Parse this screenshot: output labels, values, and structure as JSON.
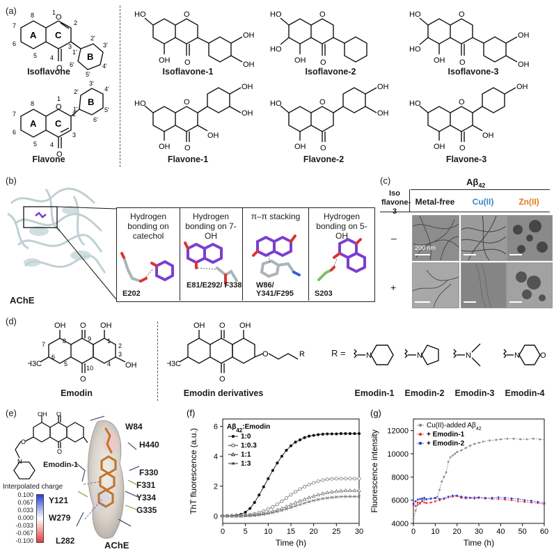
{
  "panel_a": {
    "label": "(a)",
    "scaffolds": [
      {
        "name": "Isoflavone",
        "ring_a": "A",
        "ring_b": "B",
        "ring_c": "C",
        "atoms": [
          "1",
          "2",
          "3",
          "4",
          "5",
          "6",
          "7",
          "8",
          "1'",
          "2'",
          "3'",
          "4'",
          "5'",
          "6'"
        ]
      },
      {
        "name": "Flavone",
        "ring_a": "A",
        "ring_b": "B",
        "ring_c": "C",
        "atoms": [
          "1",
          "2",
          "3",
          "4",
          "5",
          "6",
          "7",
          "8",
          "1'",
          "2'",
          "3'",
          "4'",
          "5'",
          "6'"
        ]
      }
    ],
    "compounds": [
      "Isoflavone-1",
      "Isoflavone-2",
      "Isoflavone-3",
      "Flavone-1",
      "Flavone-2",
      "Flavone-3"
    ],
    "atom_labels": {
      "O": "O",
      "HO": "HO",
      "OH": "OH"
    }
  },
  "panel_b": {
    "label": "(b)",
    "protein": "AChE",
    "interactions": [
      {
        "title": "Hydrogen bonding on catechol",
        "residues": "E202"
      },
      {
        "title": "Hydrogen bonding on 7-OH",
        "residues": "E81/E292/ F338"
      },
      {
        "title": "π–π stacking",
        "residues": "W86/ Y341/F295"
      },
      {
        "title": "Hydrogen bonding on 5-OH",
        "residues": "S203"
      }
    ]
  },
  "panel_c": {
    "label": "(c)",
    "header_main": "Aβ42",
    "row_header": "Iso flavone-3",
    "columns": [
      {
        "label": "Metal-free",
        "color": "#1a1a1a"
      },
      {
        "label": "Cu(II)",
        "color": "#3a86c8"
      },
      {
        "label": "Zn(II)",
        "color": "#e07a1f"
      }
    ],
    "rows": [
      "–",
      "+"
    ],
    "scale_label": "200 nm"
  },
  "panel_d": {
    "label": "(d)",
    "emodin": "Emodin",
    "derivatives": "Emodin derivatives",
    "r_label": "R =",
    "emodin_atoms": [
      "OH",
      "O",
      "OH",
      "8",
      "9",
      "1",
      "7",
      "2",
      "3",
      "OH",
      "6",
      "5",
      "10",
      "4",
      "H3C",
      "O"
    ],
    "r_groups": [
      "Emodin-1",
      "Emodin-2",
      "Emodin-3",
      "Emodin-4"
    ]
  },
  "panel_e": {
    "label": "(e)",
    "compound": "Emodin-1",
    "protein": "AChE",
    "charge_title": "Interpolated charge",
    "charge_ticks": [
      "0.100",
      "0.067",
      "0.033",
      "0.000",
      "-0.033",
      "-0.067",
      "-0.100"
    ],
    "residues": [
      "W84",
      "H440",
      "F330",
      "F331",
      "Y334",
      "G335",
      "Y121",
      "W279",
      "L282"
    ]
  },
  "chart_data": [
    {
      "type": "line",
      "panel": "(f)",
      "xlabel": "Time (h)",
      "ylabel": "ThT fluorescence (a.u.)",
      "xlim": [
        0,
        30
      ],
      "ylim": [
        -0.5,
        6.5
      ],
      "xticks": [
        0,
        5,
        10,
        15,
        20,
        25,
        30
      ],
      "yticks": [
        0,
        2,
        4,
        6
      ],
      "legend_title": "Aβ42:Emodin",
      "legend_position": "top-left",
      "x": [
        0,
        1,
        2,
        3,
        4,
        5,
        6,
        7,
        8,
        9,
        10,
        11,
        12,
        13,
        14,
        15,
        16,
        17,
        18,
        19,
        20,
        21,
        22,
        23,
        24,
        25,
        26,
        27,
        28,
        29,
        30
      ],
      "series": [
        {
          "name": "1:0",
          "marker": "filled-circle",
          "values": [
            0,
            0,
            0.02,
            0.05,
            0.1,
            0.25,
            0.5,
            0.9,
            1.4,
            1.95,
            2.5,
            3.05,
            3.55,
            4.0,
            4.4,
            4.7,
            4.95,
            5.1,
            5.25,
            5.35,
            5.4,
            5.45,
            5.48,
            5.5,
            5.5,
            5.5,
            5.52,
            5.52,
            5.52,
            5.52,
            5.52
          ]
        },
        {
          "name": "1:0.3",
          "marker": "open-circle",
          "values": [
            0,
            0,
            0,
            0,
            0.02,
            0.04,
            0.08,
            0.14,
            0.22,
            0.32,
            0.45,
            0.6,
            0.78,
            0.98,
            1.2,
            1.42,
            1.62,
            1.8,
            1.96,
            2.1,
            2.22,
            2.32,
            2.4,
            2.45,
            2.48,
            2.5,
            2.5,
            2.5,
            2.5,
            2.5,
            2.5
          ]
        },
        {
          "name": "1:1",
          "marker": "open-triangle",
          "values": [
            0,
            0,
            0,
            0,
            0,
            0.02,
            0.04,
            0.07,
            0.11,
            0.16,
            0.23,
            0.31,
            0.4,
            0.5,
            0.62,
            0.75,
            0.88,
            1.0,
            1.12,
            1.23,
            1.33,
            1.42,
            1.5,
            1.56,
            1.61,
            1.65,
            1.68,
            1.7,
            1.7,
            1.7,
            1.7
          ]
        },
        {
          "name": "1:3",
          "marker": "cross",
          "values": [
            0,
            0,
            0,
            0,
            0,
            0.01,
            0.02,
            0.04,
            0.07,
            0.11,
            0.16,
            0.22,
            0.29,
            0.37,
            0.46,
            0.56,
            0.66,
            0.76,
            0.86,
            0.95,
            1.03,
            1.1,
            1.16,
            1.2,
            1.24,
            1.27,
            1.29,
            1.3,
            1.3,
            1.3,
            1.3
          ]
        }
      ]
    },
    {
      "type": "line",
      "panel": "(g)",
      "xlabel": "Time (h)",
      "ylabel": "Fluorescence intensity",
      "xlim": [
        0,
        60
      ],
      "ylim": [
        4000,
        13000
      ],
      "xticks": [
        0,
        10,
        20,
        30,
        40,
        50,
        60
      ],
      "yticks": [
        4000,
        6000,
        8000,
        10000,
        12000
      ],
      "legend_position": "top-left",
      "series": [
        {
          "name": "Cu(II)-added Aβ42",
          "color": "#888888",
          "x": [
            0,
            1,
            2,
            3,
            4,
            5,
            6,
            8,
            10,
            11,
            12,
            13,
            14,
            15,
            16,
            17,
            18,
            19,
            20,
            22,
            24,
            26,
            28,
            30,
            32,
            35,
            38,
            40,
            43,
            46,
            49,
            52,
            55,
            58,
            60
          ],
          "values": [
            4400,
            5100,
            5600,
            5800,
            6000,
            6050,
            6050,
            6100,
            6150,
            6300,
            6900,
            7600,
            8000,
            8400,
            9300,
            9700,
            9850,
            10000,
            10150,
            10300,
            10500,
            10700,
            10850,
            10950,
            11050,
            11150,
            11200,
            11250,
            11300,
            11300,
            11250,
            11250,
            11300,
            11250,
            11200
          ]
        },
        {
          "name": "+ Emodin-1",
          "color": "#e83a3a",
          "x": [
            0,
            1,
            2,
            3,
            4,
            5,
            6,
            8,
            10,
            12,
            14,
            16,
            18,
            20,
            22,
            24,
            26,
            28,
            30,
            33,
            36,
            39,
            42,
            45,
            48,
            51,
            54,
            57,
            60
          ],
          "values": [
            5600,
            5500,
            5800,
            5700,
            5900,
            5800,
            5750,
            5800,
            5900,
            6000,
            6100,
            6250,
            6300,
            6350,
            6200,
            6150,
            6200,
            6250,
            6250,
            6200,
            6100,
            6100,
            6050,
            6000,
            5900,
            5850,
            5800,
            5750,
            5650
          ]
        },
        {
          "name": "+ Emodin-2",
          "color": "#2a3fd6",
          "x": [
            0,
            1,
            2,
            3,
            4,
            5,
            6,
            8,
            10,
            12,
            14,
            16,
            18,
            20,
            22,
            24,
            26,
            28,
            30,
            33,
            36,
            39,
            42,
            45,
            48,
            51,
            54,
            57,
            60
          ],
          "values": [
            5700,
            5900,
            6050,
            6100,
            6150,
            6200,
            6100,
            6150,
            6200,
            6100,
            6150,
            6300,
            6400,
            6400,
            6300,
            6250,
            6200,
            6150,
            6200,
            6150,
            6200,
            6250,
            6200,
            6150,
            6100,
            6000,
            5950,
            5850,
            5750
          ]
        }
      ]
    }
  ]
}
